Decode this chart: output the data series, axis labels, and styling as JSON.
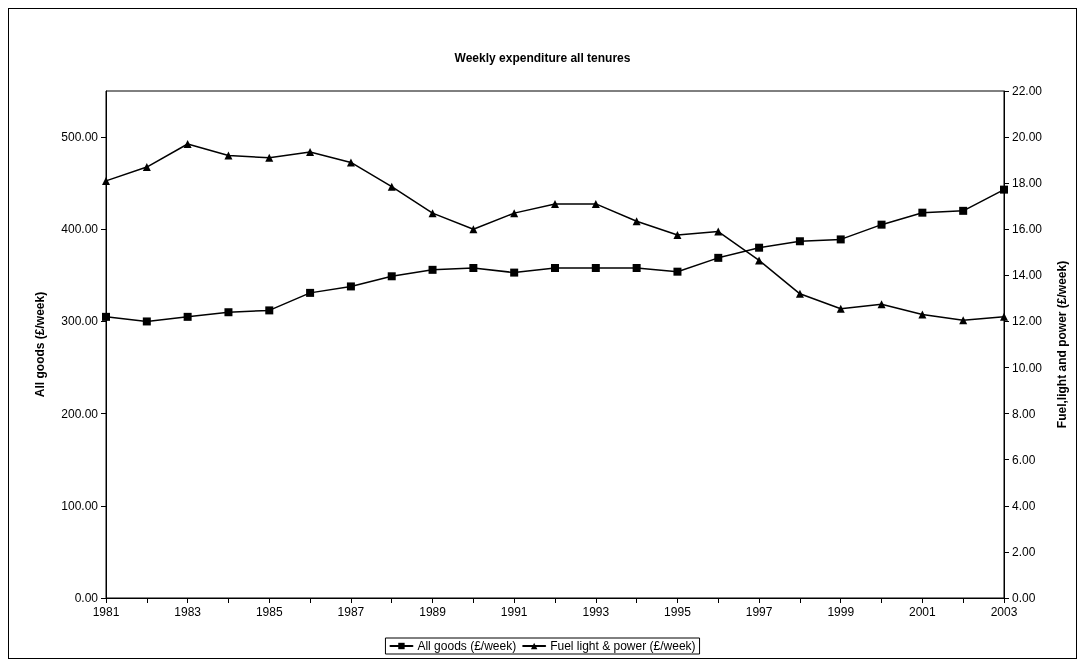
{
  "chart_data": {
    "type": "line",
    "title": "Weekly expenditure all tenures",
    "ylabel": "All goods (£/week)",
    "y2label": "Fuel,light and power (£/week)",
    "categories": [
      "1981",
      null,
      "1983",
      null,
      "1985",
      null,
      "1987",
      null,
      "1989",
      null,
      "1991",
      null,
      "1993",
      null,
      "1995",
      null,
      "1997",
      null,
      "1999",
      null,
      "2001",
      null,
      "2003"
    ],
    "series": [
      {
        "name": "All goods (£/week)",
        "color": "#000000",
        "marker": "square",
        "values": [
          305,
          300,
          305,
          310,
          312,
          331,
          338,
          349,
          356,
          358,
          353,
          358,
          358,
          358,
          354,
          369,
          380,
          387,
          389,
          405,
          418,
          420,
          443
        ]
      },
      {
        "name": "Fuel light & power (£/week)",
        "color": "#000000",
        "marker": "triangle",
        "axis": "y2",
        "values": [
          18.1,
          18.7,
          19.7,
          19.2,
          19.1,
          19.35,
          18.9,
          17.85,
          16.7,
          16.0,
          16.7,
          17.1,
          17.1,
          16.35,
          15.75,
          15.9,
          14.65,
          13.2,
          12.55,
          12.75,
          12.3,
          12.05,
          12.2
        ]
      }
    ],
    "ylim": [
      0,
      550
    ],
    "yticks": [
      {
        "value": 0,
        "label": "0.00"
      },
      {
        "value": 100,
        "label": "100.00"
      },
      {
        "value": 200,
        "label": "200.00"
      },
      {
        "value": 300,
        "label": "300.00"
      },
      {
        "value": 400,
        "label": "400.00"
      },
      {
        "value": 500,
        "label": "500.00"
      }
    ],
    "y2lim": [
      0,
      22
    ],
    "y2ticks": [
      {
        "value": 0,
        "label": "0.00"
      },
      {
        "value": 2,
        "label": "2.00"
      },
      {
        "value": 4,
        "label": "4.00"
      },
      {
        "value": 6,
        "label": "6.00"
      },
      {
        "value": 8,
        "label": "8.00"
      },
      {
        "value": 10,
        "label": "10.00"
      },
      {
        "value": 12,
        "label": "12.00"
      },
      {
        "value": 14,
        "label": "14.00"
      },
      {
        "value": 16,
        "label": "16.00"
      },
      {
        "value": 18,
        "label": "18.00"
      },
      {
        "value": 20,
        "label": "20.00"
      },
      {
        "value": 22,
        "label": "22.00"
      }
    ],
    "grid": false,
    "legend": "bottom",
    "line_style": "solid"
  }
}
